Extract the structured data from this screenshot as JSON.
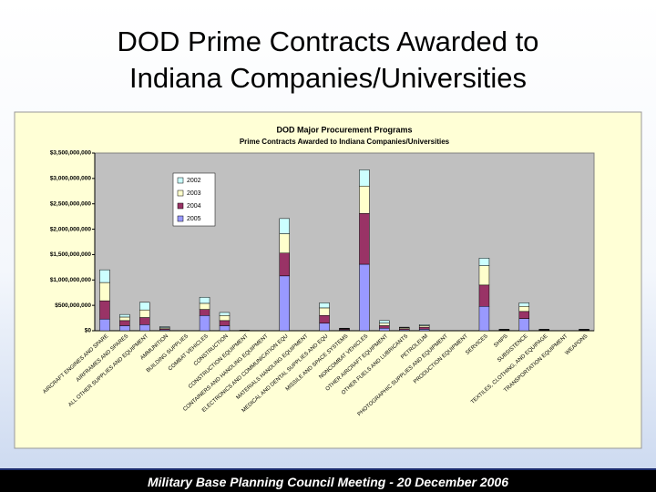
{
  "slide": {
    "title_lines": [
      "DOD Prime Contracts Awarded to",
      "Indiana Companies/Universities"
    ],
    "footer": "Military Base Planning Council Meeting - 20 December 2006"
  },
  "chart_data": {
    "type": "stacked_bar",
    "title": "DOD Major Procurement Programs",
    "subtitle": "Prime Contracts Awarded to Indiana Companies/Universities",
    "categories": [
      "AIRCRAFT ENGINES AND SPARE",
      "AIRFRAMES AND SPARES",
      "ALL OTHER SUPPLIES AND EQUIPMENT",
      "AMMUNITION",
      "BUILDING SUPPLIES",
      "COMBAT VEHICLES",
      "CONSTRUCTION",
      "CONSTRUCTION EQUIPMENT",
      "CONTAINERS AND HANDLING EQUIPMENT",
      "ELECTRONICS AND COMMUNICATION EQU",
      "MATERIALS HANDLING EQUIPMENT",
      "MEDICAL AND DENTAL SUPPLIES AND EQU",
      "MISSILE AND SPACE SYSTEMS",
      "NONCOMBAT VEHICLES",
      "OTHER AIRCRAFT EQUIPMENT",
      "OTHER FUELS AND LUBRICANTS",
      "PETROLEUM",
      "PHOTOGRAPHIC SUPPLIES AND EQUIPMENT",
      "PRODUCTION EQUIPMENT",
      "SERVICES",
      "SHIPS",
      "SUBSISTENCE",
      "TEXTILES, CLOTHING, AND EQUIPAGE",
      "TRANSPORTATION EQUIPMENT",
      "WEAPONS"
    ],
    "series": [
      {
        "name": "2005",
        "color": "#9999ff",
        "values": [
          230000000,
          100000000,
          120000000,
          20000000,
          0,
          300000000,
          100000000,
          5000000,
          0,
          1080000000,
          0,
          150000000,
          15000000,
          1310000000,
          50000000,
          20000000,
          30000000,
          0,
          0,
          480000000,
          10000000,
          240000000,
          10000000,
          0,
          10000000
        ]
      },
      {
        "name": "2004",
        "color": "#993366",
        "values": [
          360000000,
          100000000,
          140000000,
          20000000,
          0,
          120000000,
          100000000,
          5000000,
          0,
          450000000,
          0,
          150000000,
          15000000,
          1000000000,
          50000000,
          20000000,
          40000000,
          0,
          0,
          420000000,
          10000000,
          140000000,
          10000000,
          0,
          10000000
        ]
      },
      {
        "name": "2003",
        "color": "#ffffcc",
        "values": [
          360000000,
          70000000,
          150000000,
          20000000,
          0,
          120000000,
          100000000,
          0,
          0,
          380000000,
          0,
          150000000,
          10000000,
          540000000,
          50000000,
          20000000,
          30000000,
          0,
          0,
          380000000,
          5000000,
          100000000,
          5000000,
          0,
          5000000
        ]
      },
      {
        "name": "2002",
        "color": "#ccffff",
        "values": [
          250000000,
          50000000,
          150000000,
          20000000,
          0,
          120000000,
          60000000,
          0,
          0,
          300000000,
          0,
          100000000,
          10000000,
          320000000,
          50000000,
          10000000,
          20000000,
          0,
          0,
          150000000,
          5000000,
          70000000,
          5000000,
          0,
          5000000
        ]
      }
    ],
    "legend_order": [
      "2002",
      "2003",
      "2004",
      "2005"
    ],
    "ylim": [
      0,
      3500000000
    ],
    "yticks": [
      {
        "value": 0,
        "label": "$0"
      },
      {
        "value": 500000000,
        "label": "$500,000,000"
      },
      {
        "value": 1000000000,
        "label": "$1,000,000,000"
      },
      {
        "value": 1500000000,
        "label": "$1,500,000,000"
      },
      {
        "value": 2000000000,
        "label": "$2,000,000,000"
      },
      {
        "value": 2500000000,
        "label": "$2,500,000,000"
      },
      {
        "value": 3000000000,
        "label": "$3,000,000,000"
      },
      {
        "value": 3500000000,
        "label": "$3,500,000,000"
      }
    ],
    "grid": false,
    "legend": "upper-left"
  }
}
